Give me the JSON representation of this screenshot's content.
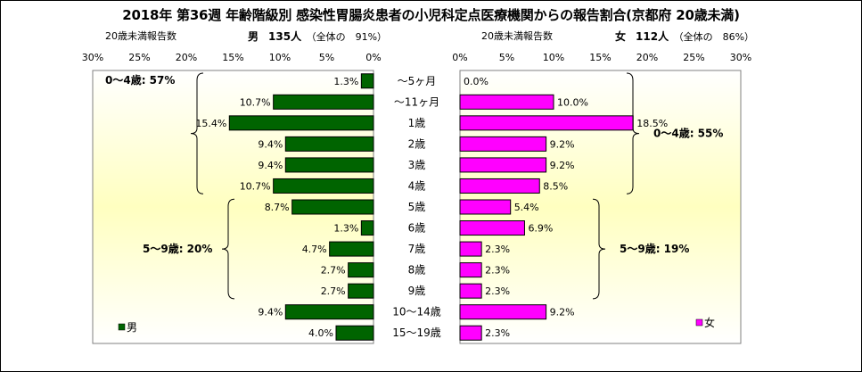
{
  "title": "2018年 第36週 年齢階級別 感染性胃腸炎患者の小児科定点医療機関からの報告割合(京都府 20歳未満)",
  "left_header": {
    "label": "20歳未満報告数",
    "sex": "男",
    "count": "135人",
    "share": "（全体の　91%）"
  },
  "right_header": {
    "label": "20歳未満報告数",
    "sex": "女",
    "count": "112人",
    "share": "（全体の　86%）"
  },
  "colors": {
    "male": "#006400",
    "female": "#ff00ff",
    "bg_top": "#ffffff",
    "bg_mid": "#ffffc0"
  },
  "chart_data": {
    "type": "bar",
    "categories": [
      "～5ヶ月",
      "～11ヶ月",
      "1歳",
      "2歳",
      "3歳",
      "4歳",
      "5歳",
      "6歳",
      "7歳",
      "8歳",
      "9歳",
      "10～14歳",
      "15～19歳"
    ],
    "series": [
      {
        "name": "男",
        "values": [
          1.3,
          10.7,
          15.4,
          9.4,
          9.4,
          10.7,
          8.7,
          1.3,
          4.7,
          2.7,
          2.7,
          9.4,
          4.0
        ],
        "labels": [
          "1.3%",
          "10.7%",
          "15.4%",
          "9.4%",
          "9.4%",
          "10.7%",
          "8.7%",
          "1.3%",
          "4.7%",
          "2.7%",
          "2.7%",
          "9.4%",
          "4.0%"
        ]
      },
      {
        "name": "女",
        "values": [
          0.0,
          10.0,
          18.5,
          9.2,
          9.2,
          8.5,
          5.4,
          6.9,
          2.3,
          2.3,
          2.3,
          9.2,
          2.3
        ],
        "labels": [
          "0.0%",
          "10.0%",
          "18.5%",
          "9.2%",
          "9.2%",
          "8.5%",
          "5.4%",
          "6.9%",
          "2.3%",
          "2.3%",
          "2.3%",
          "9.2%",
          "2.3%"
        ]
      }
    ],
    "xlim": [
      0,
      30
    ],
    "tick_labels": [
      "0%",
      "5%",
      "10%",
      "15%",
      "20%",
      "25%",
      "30%"
    ],
    "left_axis_reversed": true,
    "annotations": {
      "male": [
        {
          "text": "0～4歳: 57%",
          "from": 0,
          "to": 5
        },
        {
          "text": "5～9歳: 20%",
          "from": 6,
          "to": 10
        }
      ],
      "female": [
        {
          "text": "0～4歳: 55%",
          "from": 0,
          "to": 5
        },
        {
          "text": "5～9歳: 19%",
          "from": 6,
          "to": 10
        }
      ]
    },
    "legend": {
      "male": "男",
      "female": "女",
      "placement": "bottom"
    }
  }
}
